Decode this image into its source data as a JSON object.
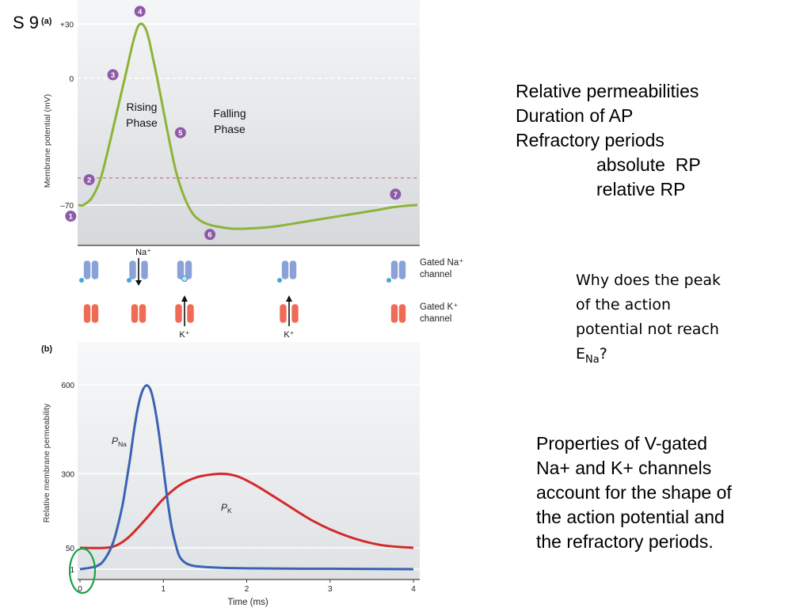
{
  "slide_label": "S 9",
  "figure": {
    "panel_a_label": "(a)",
    "panel_b_label": "(b)",
    "phase_labels": [
      "Rising Phase",
      "Falling Phase"
    ],
    "channels": {
      "na_ion": "Na⁺",
      "k_ion": "K⁺",
      "gated_na_label": [
        "Gated Na⁺",
        "channel"
      ],
      "gated_k_label": [
        "Gated K⁺",
        "channel"
      ]
    },
    "colors": {
      "membrane_potential": "#8db33a",
      "p_na": "#3b63b3",
      "p_k": "#d42a2a",
      "step_marker": "#8e5aa8",
      "na_channel": "#8aa2d8",
      "k_channel": "#ef6b55",
      "highlight_circle": "#1aa24a",
      "threshold_line": "#e06b7a"
    }
  },
  "notes": {
    "line1": "Relative permeabilities",
    "line2": "Duration of AP",
    "line3": "Refractory periods",
    "line4": "absolute  RP",
    "line5": "relative RP"
  },
  "question": {
    "text1": "Why does the peak of the action potential not reach E",
    "sub": "Na",
    "text2": "?"
  },
  "properties": "Properties of V-gated Na+ and K+ channels account for the shape of the action potential and the refractory periods.",
  "chart_data": [
    {
      "type": "line",
      "title": "",
      "ylabel": "Membrane potential (mV)",
      "ylim": [
        -85,
        35
      ],
      "y_ticks": [
        {
          "value": 30,
          "label": "+30"
        },
        {
          "value": 0,
          "label": "0"
        },
        {
          "value": -70,
          "label": "–70"
        }
      ],
      "reference_lines": [
        {
          "value": 30,
          "style": "solid"
        },
        {
          "value": 0,
          "style": "dashed"
        },
        {
          "value": -55,
          "style": "dashed"
        },
        {
          "value": -70,
          "style": "solid"
        }
      ],
      "series": [
        {
          "x": [
            0,
            0.05,
            0.15,
            0.25,
            0.35,
            0.45,
            0.55,
            0.65,
            0.72,
            0.8,
            0.88,
            0.95,
            1.05,
            1.15,
            1.25,
            1.35,
            1.45,
            1.55,
            1.65,
            1.8,
            2.0,
            2.3,
            2.7,
            3.1,
            3.5,
            3.75,
            4.0
          ],
          "y": [
            -70,
            -70,
            -66,
            -56,
            -38,
            -18,
            2,
            22,
            30,
            26,
            10,
            -6,
            -30,
            -52,
            -66,
            -75,
            -79,
            -81,
            -82,
            -83,
            -83,
            -82,
            -79,
            -76,
            -73,
            -71,
            -70
          ]
        }
      ],
      "step_markers": [
        {
          "label": "1",
          "x": 0.05
        },
        {
          "label": "2",
          "x": 0.25
        },
        {
          "label": "3",
          "x": 0.55
        },
        {
          "label": "4",
          "x": 0.72
        },
        {
          "label": "5",
          "x": 1.05
        },
        {
          "label": "6",
          "x": 1.55
        },
        {
          "label": "7",
          "x": 3.75
        }
      ]
    },
    {
      "type": "line",
      "title": "",
      "xlabel": "Time (ms)",
      "ylabel": "Relative membrane permeability",
      "xlim": [
        0,
        4
      ],
      "ylim": [
        0,
        700
      ],
      "x_ticks": [
        "0",
        "1",
        "2",
        "3",
        "4"
      ],
      "y_ticks": [
        {
          "value": 1,
          "label": "1"
        },
        {
          "value": 50,
          "label": "50"
        },
        {
          "value": 300,
          "label": "300"
        },
        {
          "value": 600,
          "label": "600"
        }
      ],
      "series": [
        {
          "name_main": "P",
          "name_sub": "Na",
          "x": [
            0,
            0.2,
            0.3,
            0.4,
            0.5,
            0.55,
            0.6,
            0.65,
            0.7,
            0.75,
            0.8,
            0.85,
            0.9,
            0.95,
            1.0,
            1.05,
            1.1,
            1.15,
            1.2,
            1.3,
            1.5,
            2.0,
            3.0,
            4.0
          ],
          "y": [
            1,
            8,
            25,
            70,
            180,
            260,
            350,
            450,
            530,
            580,
            598,
            580,
            520,
            430,
            320,
            210,
            120,
            60,
            28,
            12,
            6,
            3,
            2,
            1
          ]
        },
        {
          "name_main": "P",
          "name_sub": "K",
          "x": [
            0,
            0.3,
            0.45,
            0.6,
            0.8,
            1.0,
            1.2,
            1.4,
            1.6,
            1.75,
            1.9,
            2.1,
            2.4,
            2.8,
            3.2,
            3.6,
            4.0
          ],
          "y": [
            50,
            50,
            60,
            90,
            150,
            215,
            262,
            288,
            298,
            299,
            290,
            262,
            210,
            140,
            90,
            60,
            50
          ]
        }
      ]
    }
  ]
}
